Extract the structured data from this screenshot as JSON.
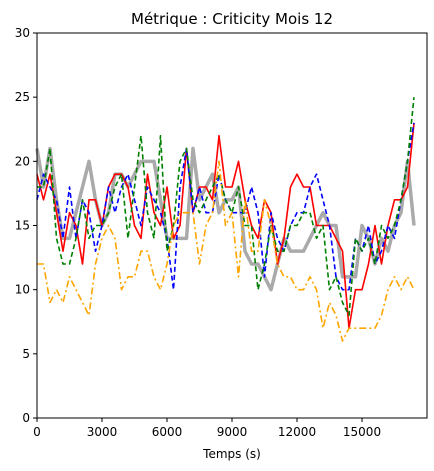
{
  "chart_data": {
    "type": "line",
    "title": "Métrique : Criticity Mois 12",
    "xlabel": "Temps (s)",
    "ylabel": "",
    "xlim": [
      0,
      18000
    ],
    "ylim": [
      0,
      30
    ],
    "x_ticks": [
      0,
      3000,
      6000,
      9000,
      12000,
      15000
    ],
    "x_tick_labels": [
      "0",
      "3000",
      "6000",
      "9000",
      "12000",
      "15000"
    ],
    "y_ticks": [
      0,
      5,
      10,
      15,
      20,
      25,
      30
    ],
    "y_tick_labels": [
      "0",
      "5",
      "10",
      "15",
      "20",
      "25",
      "30"
    ],
    "grid": false,
    "legend": "none",
    "x": [
      0,
      300,
      600,
      900,
      1200,
      1500,
      1800,
      2100,
      2400,
      2700,
      3000,
      3300,
      3600,
      3900,
      4200,
      4500,
      4800,
      5100,
      5400,
      5700,
      6000,
      6300,
      6600,
      6900,
      7200,
      7500,
      7800,
      8100,
      8400,
      8700,
      9000,
      9300,
      9600,
      9900,
      10200,
      10500,
      10800,
      11100,
      11400,
      11700,
      12000,
      12300,
      12600,
      12900,
      13200,
      13500,
      13800,
      14100,
      14400,
      14700,
      15000,
      15300,
      15600,
      15900,
      16200,
      16500,
      16800,
      17100,
      17400
    ],
    "series": [
      {
        "color": "#aaaaaa",
        "style": "solid-thick",
        "values": [
          21,
          18,
          21,
          17,
          14,
          14,
          16,
          18,
          20,
          17,
          15,
          16,
          19,
          19,
          18,
          19,
          20,
          20,
          20,
          17,
          14,
          14,
          14,
          14,
          21,
          17,
          18,
          19,
          16,
          17,
          17,
          18,
          13,
          12,
          12,
          11,
          10,
          12,
          14,
          13,
          13,
          13,
          14,
          15,
          16,
          15,
          15,
          11,
          11,
          11,
          15,
          14,
          12,
          14,
          13,
          15,
          16,
          20,
          15
        ]
      },
      {
        "color": "#ff0000",
        "style": "solid",
        "values": [
          19,
          17,
          19,
          16,
          13,
          16,
          15,
          12,
          17,
          17,
          15,
          18,
          19,
          19,
          18,
          15,
          14,
          19,
          16,
          15,
          18,
          14,
          15,
          21,
          16,
          18,
          18,
          17,
          22,
          18,
          18,
          20,
          17,
          15,
          14,
          17,
          16,
          12,
          14,
          18,
          19,
          18,
          18,
          15,
          15,
          15,
          14,
          13,
          7,
          10,
          10,
          12,
          15,
          12,
          15,
          17,
          17,
          18,
          23
        ]
      },
      {
        "color": "#0000ff",
        "style": "dashed",
        "values": [
          17,
          19,
          18,
          17,
          14,
          18,
          14,
          17,
          16,
          13,
          15,
          18,
          16,
          18,
          19,
          17,
          15,
          18,
          17,
          16,
          14,
          10,
          18,
          21,
          16,
          18,
          16,
          16,
          19,
          17,
          16,
          16,
          16,
          18,
          16,
          11,
          16,
          14,
          13,
          15,
          16,
          16,
          18,
          19,
          17,
          15,
          11,
          10,
          10,
          14,
          13,
          15,
          12,
          13,
          15,
          14,
          17,
          20,
          23
        ]
      },
      {
        "color": "#008000",
        "style": "dashed",
        "values": [
          18,
          18,
          21,
          14,
          12,
          12,
          14,
          17,
          14,
          15,
          15,
          16,
          18,
          19,
          14,
          18,
          22,
          16,
          14,
          22,
          13,
          15,
          20,
          21,
          17,
          16,
          17,
          18,
          19,
          17,
          16,
          18,
          15,
          15,
          10,
          12,
          15,
          13,
          13,
          15,
          15,
          16,
          16,
          14,
          15,
          10,
          11,
          9,
          8,
          14,
          13,
          14,
          12,
          15,
          14,
          15,
          17,
          20,
          25
        ]
      },
      {
        "color": "#ffa500",
        "style": "dashdot",
        "values": [
          12,
          12,
          9,
          10,
          9,
          11,
          10,
          9,
          8,
          12,
          14,
          15,
          14,
          10,
          11,
          11,
          13,
          13,
          11,
          10,
          12,
          15,
          16,
          16,
          16,
          12,
          15,
          16,
          20,
          15,
          16,
          11,
          17,
          13,
          13,
          17,
          15,
          12,
          11,
          11,
          10,
          10,
          11,
          10,
          7,
          9,
          8,
          6,
          7,
          7,
          7,
          7,
          7,
          8,
          10,
          11,
          10,
          11,
          10
        ]
      }
    ]
  }
}
